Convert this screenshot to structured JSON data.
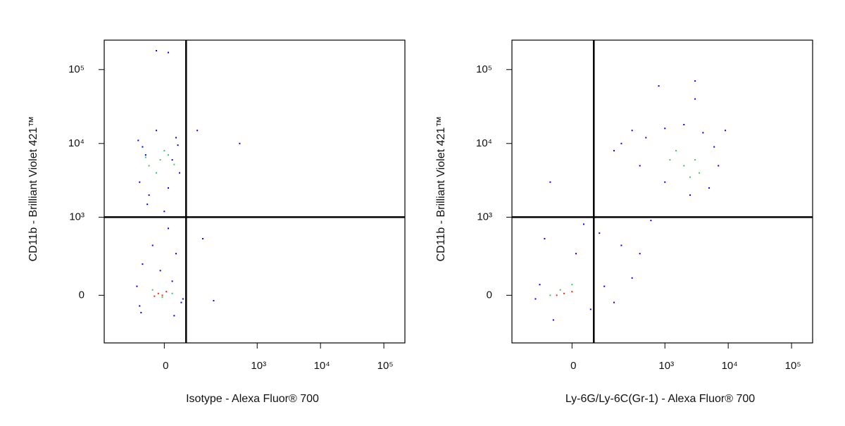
{
  "chart_data": [
    {
      "type": "scatter",
      "xlabel": "Isotype - Alexa Fluor® 700",
      "ylabel": "CD11b - Brilliant Violet 421™",
      "xlim": [
        -300,
        215000
      ],
      "ylim": [
        -370,
        250000
      ],
      "xticks": [
        0,
        {
          "value": 1000,
          "label": "10³"
        },
        {
          "value": 10000,
          "label": "10⁴"
        },
        {
          "value": 100000,
          "label": "10⁵"
        }
      ],
      "yticks": [
        0,
        {
          "value": 1000,
          "label": "10³"
        },
        {
          "value": 10000,
          "label": "10⁴"
        },
        {
          "value": 100000,
          "label": "10⁵"
        }
      ],
      "quadrant_gate": {
        "x": 60,
        "y": 1000
      },
      "series": [
        {
          "color": "#0000ff",
          "x": [
            -70,
            -40,
            10,
            40,
            -60,
            30,
            -20,
            -50,
            20,
            -30,
            10,
            -60,
            30,
            -10,
            -80,
            45,
            -70,
            20,
            103,
            130,
            200,
            527,
            -20,
            10,
            -75,
            35,
            -45,
            0,
            50,
            -65,
            25
          ],
          "y": [
            3000,
            2000,
            2500,
            4000,
            9000,
            12000,
            15000,
            7000,
            6000,
            400,
            700,
            200,
            300,
            150,
            50,
            -40,
            -60,
            80,
            15000,
            500,
            -30,
            10000,
            180000,
            170000,
            11000,
            9500,
            1500,
            1200,
            -20,
            -100,
            -120
          ]
        },
        {
          "color": "#33cc66",
          "x": [
            -40,
            -10,
            10,
            -20,
            0,
            -30,
            20,
            -5,
            -50,
            25
          ],
          "y": [
            5000,
            6000,
            7000,
            4000,
            8000,
            30,
            10,
            -10,
            6500,
            5200
          ]
        },
        {
          "color": "#ff2200",
          "x": [
            -15,
            5,
            -25,
            -5
          ],
          "y": [
            10,
            20,
            -5,
            0
          ]
        }
      ]
    },
    {
      "type": "scatter",
      "xlabel": "Ly-6G/Ly-6C(Gr-1) - Alexa Fluor® 700",
      "ylabel": "CD11b - Brilliant Violet 421™",
      "xlim": [
        -300,
        215000
      ],
      "ylim": [
        -370,
        250000
      ],
      "xticks": [
        0,
        {
          "value": 1000,
          "label": "10³"
        },
        {
          "value": 10000,
          "label": "10⁴"
        },
        {
          "value": 100000,
          "label": "10⁵"
        }
      ],
      "yticks": [
        0,
        {
          "value": 1000,
          "label": "10³"
        },
        {
          "value": 10000,
          "label": "10⁴"
        },
        {
          "value": 100000,
          "label": "10⁵"
        }
      ],
      "quadrant_gate": {
        "x": 60,
        "y": 1000
      },
      "series": [
        {
          "color": "#0000ff",
          "x": [
            150,
            300,
            500,
            1000,
            2000,
            4000,
            6000,
            7000,
            5000,
            2500,
            1000,
            400,
            200,
            800,
            3000,
            3000,
            -60,
            -40,
            -80,
            10,
            80,
            200,
            400,
            600,
            300,
            100,
            -120,
            50,
            150,
            -100,
            -50,
            30,
            9000
          ],
          "y": [
            8000,
            15000,
            12000,
            16000,
            18000,
            14000,
            9000,
            5000,
            2500,
            2000,
            3000,
            5000,
            10000,
            60000,
            70000,
            40000,
            3000,
            1000,
            500,
            300,
            600,
            400,
            300,
            900,
            100,
            50,
            -20,
            -80,
            -40,
            60,
            -150,
            800,
            15000
          ]
        },
        {
          "color": "#33cc66",
          "x": [
            2000,
            3000,
            2500,
            1500,
            3500,
            1200,
            -30,
            0,
            60,
            -60
          ],
          "y": [
            5000,
            6000,
            3500,
            8000,
            4000,
            6000,
            30,
            60,
            20,
            0
          ]
        },
        {
          "color": "#ff2200",
          "x": [
            -20,
            0,
            -40
          ],
          "y": [
            10,
            20,
            0
          ]
        }
      ]
    }
  ]
}
